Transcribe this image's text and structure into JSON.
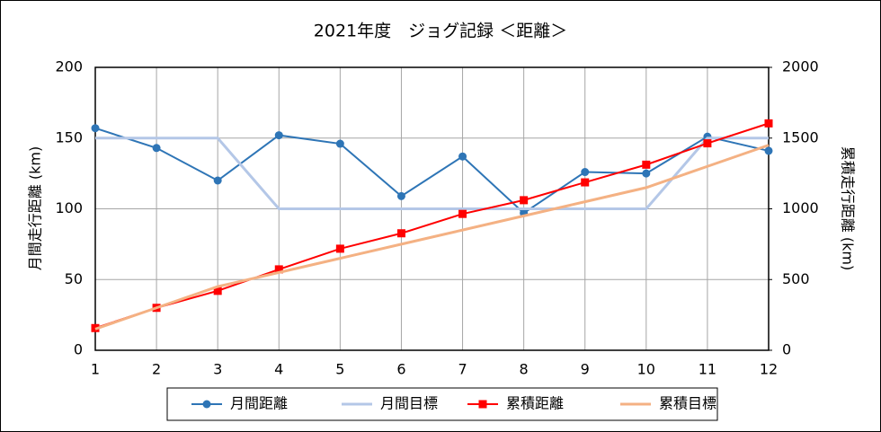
{
  "chart_data": {
    "type": "line",
    "title": "2021年度　ジョグ記録 ＜距離＞",
    "y_label": "月間走行距離 (km)",
    "y2_label": "累積走行距離 (km)",
    "x": [
      1,
      2,
      3,
      4,
      5,
      6,
      7,
      8,
      9,
      10,
      11,
      12
    ],
    "xlim": [
      1,
      12
    ],
    "xticks": [
      1,
      2,
      3,
      4,
      5,
      6,
      7,
      8,
      9,
      10,
      11,
      12
    ],
    "ylim": [
      0,
      200
    ],
    "yticks": [
      0,
      50,
      100,
      150,
      200
    ],
    "y2lim": [
      0,
      2000
    ],
    "y2ticks": [
      0,
      500,
      1000,
      1500,
      2000
    ],
    "grid": true,
    "legend": "bottom",
    "series": [
      {
        "name": "月間距離",
        "color": "#2e75b6",
        "marker": "circle",
        "values": [
          157,
          143,
          120,
          152,
          146,
          109,
          137,
          97,
          126,
          125,
          151,
          141
        ]
      },
      {
        "name": "月間目標",
        "color": "#b4c7e7",
        "marker": "none",
        "values": [
          150,
          150,
          150,
          100,
          100,
          100,
          100,
          100,
          100,
          100,
          150,
          150
        ]
      },
      {
        "name": "累積距離",
        "color": "#ff0000",
        "marker": "square",
        "axis": "y2",
        "values": [
          157,
          300,
          420,
          572,
          718,
          827,
          964,
          1061,
          1187,
          1312,
          1463,
          1604
        ]
      },
      {
        "name": "累積目標",
        "color": "#f4b183",
        "marker": "none",
        "axis": "y2",
        "values": [
          150,
          300,
          450,
          550,
          650,
          750,
          850,
          950,
          1050,
          1150,
          1300,
          1450
        ]
      }
    ]
  }
}
